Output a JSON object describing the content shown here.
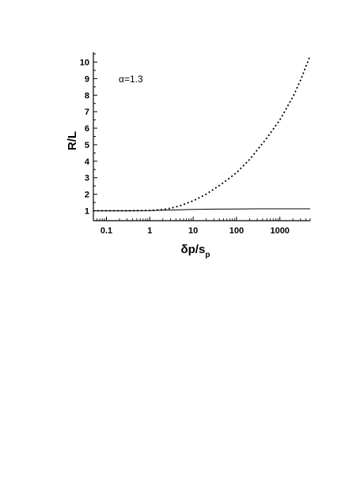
{
  "chart_data": {
    "type": "line",
    "title": "",
    "xlabel": "δp/s",
    "xlabel_subscript": "p",
    "ylabel": "R/L",
    "x_scale": "log",
    "xlim": [
      0.05,
      5000
    ],
    "ylim": [
      0.4,
      10.6
    ],
    "x_ticks": [
      0.1,
      1,
      10,
      100,
      1000
    ],
    "x_tick_labels": [
      "0.1",
      "1",
      "10",
      "100",
      "1000"
    ],
    "y_ticks": [
      1,
      2,
      3,
      4,
      5,
      6,
      7,
      8,
      9,
      10
    ],
    "y_tick_labels": [
      "1",
      "2",
      "3",
      "4",
      "5",
      "6",
      "7",
      "8",
      "9",
      "10"
    ],
    "grid": false,
    "annotation": "α=1.3",
    "series": [
      {
        "style": "solid",
        "x": [
          0.05,
          0.1,
          0.3,
          1,
          2,
          5,
          10,
          30,
          100,
          300,
          1000,
          5000
        ],
        "y": [
          1.0,
          1.0,
          1.0,
          1.01,
          1.03,
          1.06,
          1.08,
          1.1,
          1.11,
          1.12,
          1.12,
          1.12
        ]
      },
      {
        "style": "dotted",
        "x": [
          0.05,
          0.1,
          0.3,
          1,
          2,
          3,
          5,
          10,
          20,
          50,
          100,
          200,
          500,
          1000,
          2000,
          3000,
          5000
        ],
        "y": [
          1.0,
          1.0,
          1.0,
          1.02,
          1.07,
          1.15,
          1.3,
          1.6,
          2.0,
          2.7,
          3.3,
          4.1,
          5.4,
          6.5,
          7.9,
          8.9,
          10.4
        ]
      }
    ]
  }
}
